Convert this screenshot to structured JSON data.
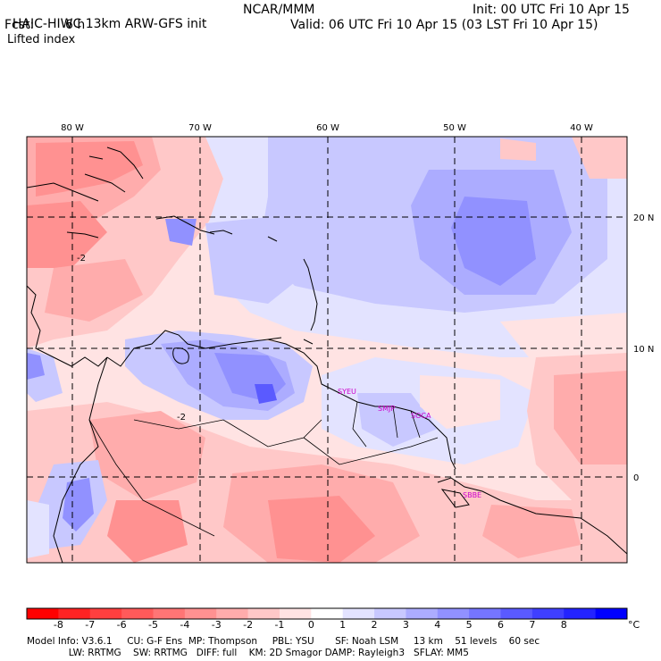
{
  "header": {
    "model_title": "HAIC-HIWC 13km ARW-GFS init",
    "org": "NCAR/MMM",
    "init": "Init: 00 UTC Fri 10 Apr 15",
    "fcst_label": "Fcst:",
    "fcst_value": "6 h",
    "valid": "Valid: 06 UTC Fri 10 Apr 15 (03 LST Fri 10 Apr 15)",
    "field": "Lifted index"
  },
  "map": {
    "lon_labels": [
      "80 W",
      "70 W",
      "60 W",
      "50 W",
      "40 W"
    ],
    "lat_labels": [
      "20 N",
      "10 N",
      "0"
    ],
    "stations": [
      "SYEU",
      "SMJP",
      "SOCA",
      "SBBE"
    ],
    "contour_labels": [
      "-2",
      "-2"
    ]
  },
  "colorbar": {
    "levels": [
      "-8",
      "-7",
      "-6",
      "-5",
      "-4",
      "-3",
      "-2",
      "-1",
      "0",
      "1",
      "2",
      "3",
      "4",
      "5",
      "6",
      "7",
      "8"
    ],
    "unit": "°C",
    "colors": [
      "#ff0000",
      "#ff2323",
      "#ff3f3f",
      "#ff5a5a",
      "#ff7575",
      "#ff9191",
      "#ffacac",
      "#ffc8c8",
      "#ffe3e3",
      "#ffffff",
      "#e3e3ff",
      "#c8c8ff",
      "#acacff",
      "#9191ff",
      "#7575ff",
      "#5a5aff",
      "#3f3fff",
      "#2323ff",
      "#0000ff"
    ]
  },
  "footer": {
    "line1": "Model Info: V3.6.1     CU: G-F Ens  MP: Thompson     PBL: YSU       SF: Noah LSM     13 km    51 levels    60 sec",
    "line2": "              LW: RRTMG    SW: RRTMG   DIFF: full    KM: 2D Smagor DAMP: Rayleigh3   SFLAY: MM5"
  }
}
